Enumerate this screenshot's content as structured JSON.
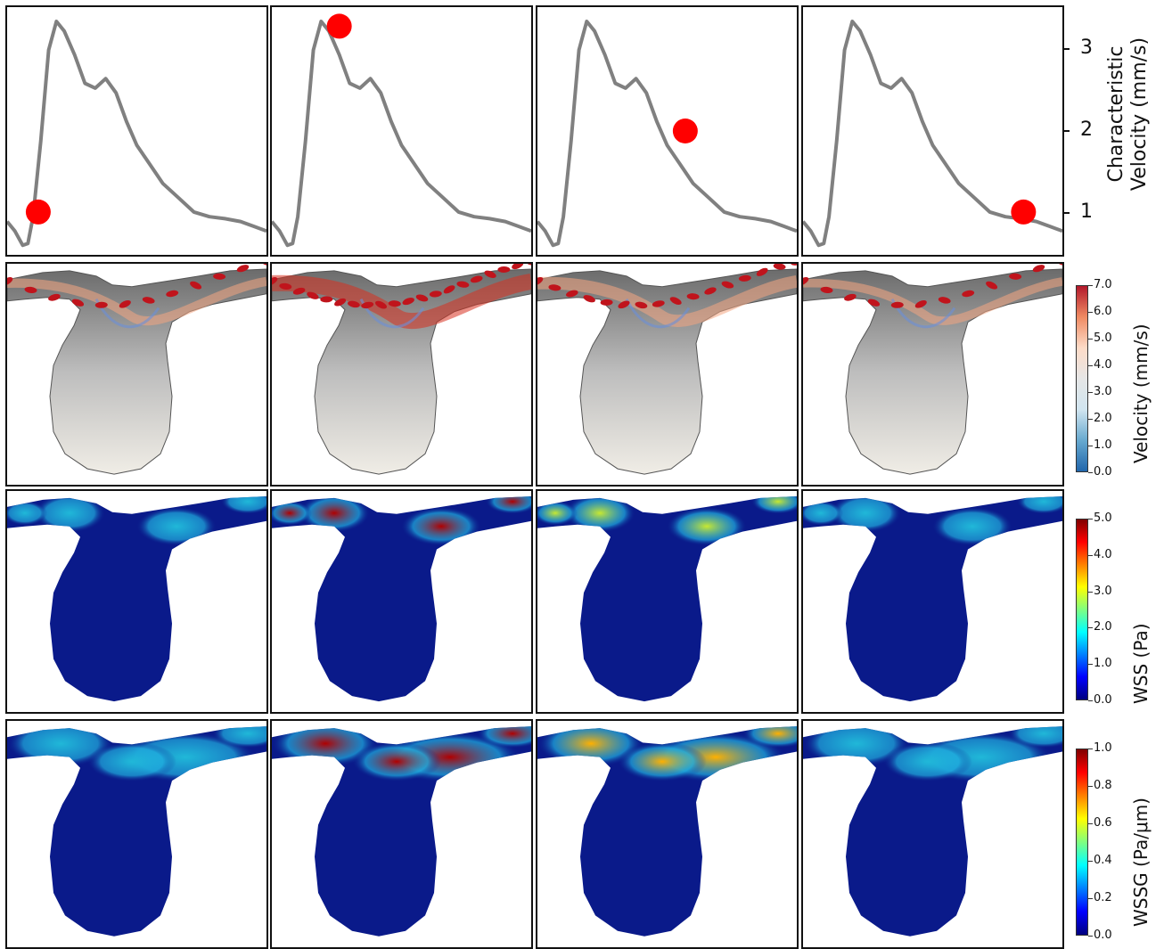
{
  "velocity_axis": {
    "ylabel_line1": "Characteristic",
    "ylabel_line2": "Velocity (mm/s)",
    "ticks": [
      "3",
      "2",
      "1"
    ]
  },
  "colorbars": [
    {
      "label": "Velocity (mm/s)",
      "ticks": [
        "7.0",
        "6.0",
        "5.0",
        "4.0",
        "3.0",
        "2.0",
        "1.0",
        "0.0"
      ],
      "colors": [
        "#b2182b",
        "#ef8a62",
        "#fddbc7",
        "#e6e6e6",
        "#d1e5f0",
        "#67a9cf",
        "#2166ac"
      ]
    },
    {
      "label": "WSS (Pa)",
      "ticks": [
        "5.0",
        "4.0",
        "3.0",
        "2.0",
        "1.0",
        "0.0"
      ],
      "colors": [
        "#7f0000",
        "#ff0000",
        "#ff8000",
        "#ffff00",
        "#80ff80",
        "#00ffff",
        "#0080ff",
        "#0000ff",
        "#00007f"
      ]
    },
    {
      "label": "WSSG (Pa/μm)",
      "ticks": [
        "1.0",
        "0.8",
        "0.6",
        "0.4",
        "0.2",
        "0.0"
      ],
      "colors": [
        "#7f0000",
        "#ff0000",
        "#ff8000",
        "#ffff00",
        "#80ff80",
        "#00ffff",
        "#0080ff",
        "#0000ff",
        "#00007f"
      ]
    }
  ],
  "chart_data": {
    "type": "line",
    "ylabel": "Characteristic Velocity (mm/s)",
    "ylim": [
      0.7,
      3.3
    ],
    "grid": false,
    "x": [
      0,
      0.03,
      0.06,
      0.08,
      0.1,
      0.13,
      0.16,
      0.19,
      0.22,
      0.26,
      0.3,
      0.34,
      0.38,
      0.42,
      0.46,
      0.5,
      0.55,
      0.6,
      0.66,
      0.72,
      0.78,
      0.84,
      0.9,
      0.95,
      1.0
    ],
    "series": [
      {
        "values": [
          1.05,
          0.95,
          0.8,
          0.82,
          1.1,
          1.9,
          2.85,
          3.15,
          3.05,
          2.8,
          2.5,
          2.45,
          2.55,
          2.4,
          2.1,
          1.85,
          1.65,
          1.45,
          1.3,
          1.15,
          1.1,
          1.08,
          1.05,
          1.0,
          0.95
        ]
      }
    ],
    "markers": [
      {
        "panel": 1,
        "x": 0.12,
        "y": 1.15
      },
      {
        "panel": 2,
        "x": 0.26,
        "y": 3.1
      },
      {
        "panel": 3,
        "x": 0.57,
        "y": 2.0
      },
      {
        "panel": 4,
        "x": 0.85,
        "y": 1.15
      }
    ],
    "rows": [
      "Velocity (mm/s)",
      "WSS (Pa)",
      "WSSG (Pa/μm)"
    ],
    "row_intensity": {
      "velocity": [
        0.45,
        1.0,
        0.7,
        0.4
      ],
      "wss": [
        0.4,
        1.0,
        0.55,
        0.3
      ],
      "wssg": [
        0.45,
        1.0,
        0.7,
        0.4
      ]
    }
  }
}
